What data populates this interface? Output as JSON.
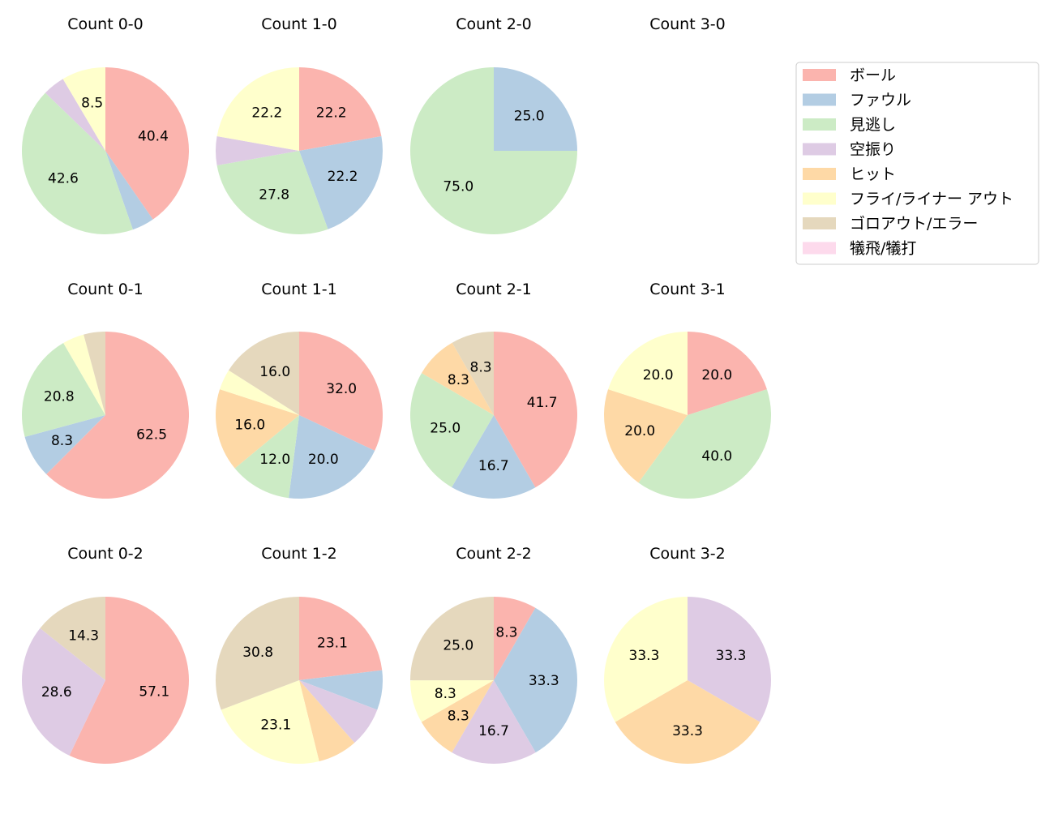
{
  "legend": [
    {
      "label": "ボール",
      "color": "#fbb4ae"
    },
    {
      "label": "ファウル",
      "color": "#b3cde3"
    },
    {
      "label": "見逃し",
      "color": "#ccebc5"
    },
    {
      "label": "空振り",
      "color": "#decbe4"
    },
    {
      "label": "ヒット",
      "color": "#fed9a6"
    },
    {
      "label": "フライ/ライナー アウト",
      "color": "#ffffcc"
    },
    {
      "label": "ゴロアウト/エラー",
      "color": "#e5d8bd"
    },
    {
      "label": "犠飛/犠打",
      "color": "#fddaec"
    }
  ],
  "chart_data": [
    {
      "type": "pie",
      "title": "Count 0-0",
      "values": [
        40.4,
        4.3,
        42.6,
        4.3,
        0,
        8.5,
        0,
        0
      ],
      "labels": [
        "40.4",
        "",
        "42.6",
        "",
        "",
        "8.5",
        "",
        ""
      ]
    },
    {
      "type": "pie",
      "title": "Count 1-0",
      "values": [
        22.2,
        22.2,
        27.8,
        5.6,
        0,
        22.2,
        0,
        0
      ],
      "labels": [
        "22.2",
        "22.2",
        "27.8",
        "",
        "",
        "22.2",
        "",
        ""
      ]
    },
    {
      "type": "pie",
      "title": "Count 2-0",
      "values": [
        0,
        25.0,
        75.0,
        0,
        0,
        0,
        0,
        0
      ],
      "labels": [
        "",
        "25.0",
        "75.0",
        "",
        "",
        "",
        "",
        ""
      ]
    },
    {
      "type": "pie",
      "title": "Count 3-0",
      "values": [
        0,
        0,
        0,
        0,
        0,
        0,
        0,
        0
      ],
      "labels": [
        "",
        "",
        "",
        "",
        "",
        "",
        "",
        ""
      ]
    },
    {
      "type": "pie",
      "title": "Count 0-1",
      "values": [
        62.5,
        8.3,
        20.8,
        0,
        0,
        4.2,
        4.2,
        0
      ],
      "labels": [
        "62.5",
        "8.3",
        "20.8",
        "",
        "",
        "",
        "",
        ""
      ]
    },
    {
      "type": "pie",
      "title": "Count 1-1",
      "values": [
        32.0,
        20.0,
        12.0,
        0,
        16.0,
        4.0,
        16.0,
        0
      ],
      "labels": [
        "32.0",
        "20.0",
        "12.0",
        "",
        "16.0",
        "",
        "16.0",
        ""
      ]
    },
    {
      "type": "pie",
      "title": "Count 2-1",
      "values": [
        41.7,
        16.7,
        25.0,
        0,
        8.3,
        0,
        8.3,
        0
      ],
      "labels": [
        "41.7",
        "16.7",
        "25.0",
        "",
        "8.3",
        "",
        "8.3",
        ""
      ]
    },
    {
      "type": "pie",
      "title": "Count 3-1",
      "values": [
        20.0,
        0,
        40.0,
        0,
        20.0,
        20.0,
        0,
        0
      ],
      "labels": [
        "20.0",
        "",
        "40.0",
        "",
        "20.0",
        "20.0",
        "",
        ""
      ]
    },
    {
      "type": "pie",
      "title": "Count 0-2",
      "values": [
        57.1,
        0,
        0,
        28.6,
        0,
        0,
        14.3,
        0
      ],
      "labels": [
        "57.1",
        "",
        "",
        "28.6",
        "",
        "",
        "14.3",
        ""
      ]
    },
    {
      "type": "pie",
      "title": "Count 1-2",
      "values": [
        23.1,
        7.7,
        0,
        7.7,
        7.7,
        23.1,
        30.8,
        0
      ],
      "labels": [
        "23.1",
        "",
        "",
        "",
        "",
        "23.1",
        "30.8",
        ""
      ]
    },
    {
      "type": "pie",
      "title": "Count 2-2",
      "values": [
        8.3,
        33.3,
        0,
        16.7,
        8.3,
        8.3,
        25.0,
        0
      ],
      "labels": [
        "8.3",
        "33.3",
        "",
        "16.7",
        "8.3",
        "8.3",
        "25.0",
        ""
      ]
    },
    {
      "type": "pie",
      "title": "Count 3-2",
      "values": [
        0,
        0,
        0,
        33.3,
        33.3,
        33.3,
        0,
        0
      ],
      "labels": [
        "",
        "",
        "",
        "33.3",
        "33.3",
        "33.3",
        "",
        ""
      ]
    }
  ]
}
